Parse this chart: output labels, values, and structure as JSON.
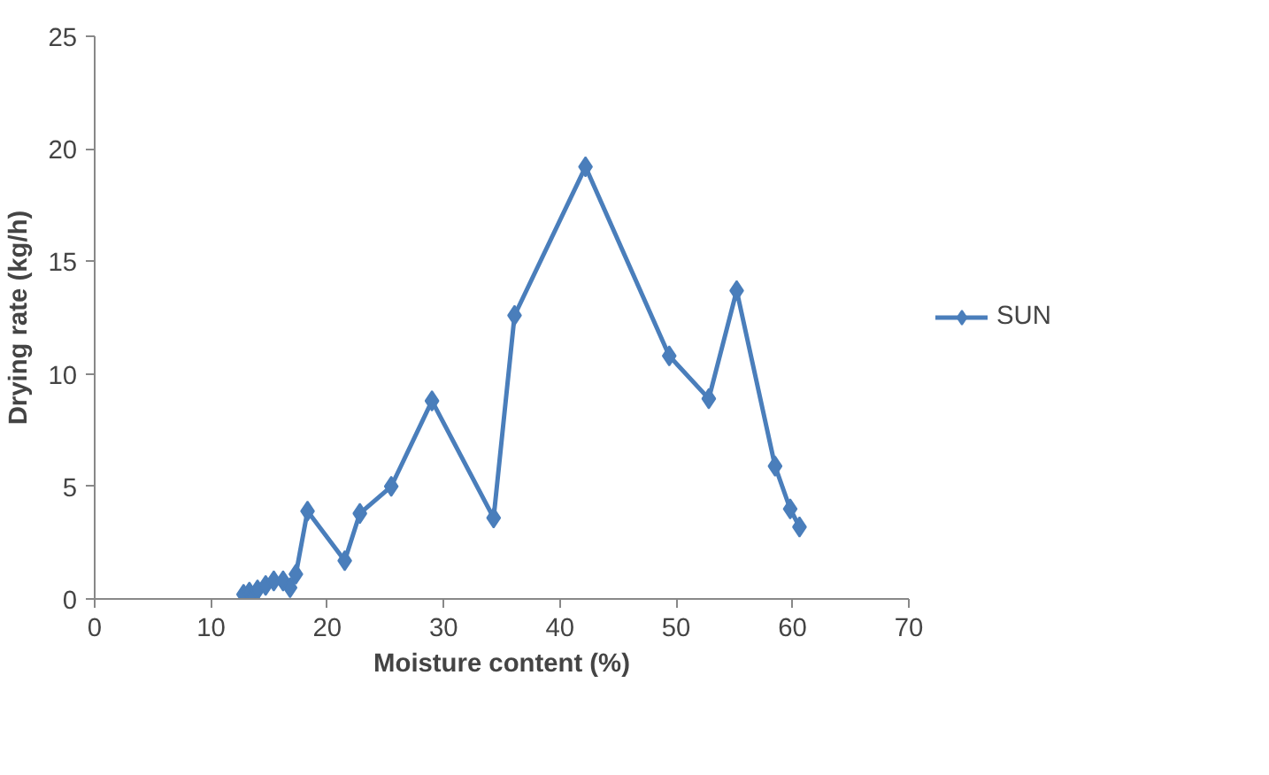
{
  "chart_data": {
    "type": "line",
    "xlabel": "Moisture content (%)",
    "ylabel": "Drying rate (kg/h)",
    "xlim": [
      0,
      70
    ],
    "xticks": [
      0,
      10,
      20,
      30,
      40,
      50,
      60,
      70
    ],
    "ylim": [
      0,
      25
    ],
    "yticks": [
      0,
      5,
      10,
      15,
      20,
      25
    ],
    "grid": false,
    "legend": "right",
    "marker": "diamond",
    "line_style": "solid",
    "series": [
      {
        "name": "SUN",
        "color": "#4a7ebb",
        "x": [
          12.8,
          13.3,
          13.6,
          14.0,
          14.7,
          15.4,
          16.2,
          16.8,
          17.3,
          18.3,
          21.5,
          22.8,
          25.5,
          29.0,
          34.3,
          36.1,
          42.2,
          49.4,
          52.8,
          55.2,
          58.5,
          59.8,
          60.6
        ],
        "values": [
          0.2,
          0.3,
          0.1,
          0.4,
          0.6,
          0.8,
          0.8,
          0.5,
          1.1,
          3.9,
          1.7,
          3.8,
          5.0,
          8.8,
          3.6,
          12.6,
          19.2,
          10.8,
          8.9,
          13.7,
          5.9,
          4.0,
          3.2
        ]
      }
    ]
  }
}
